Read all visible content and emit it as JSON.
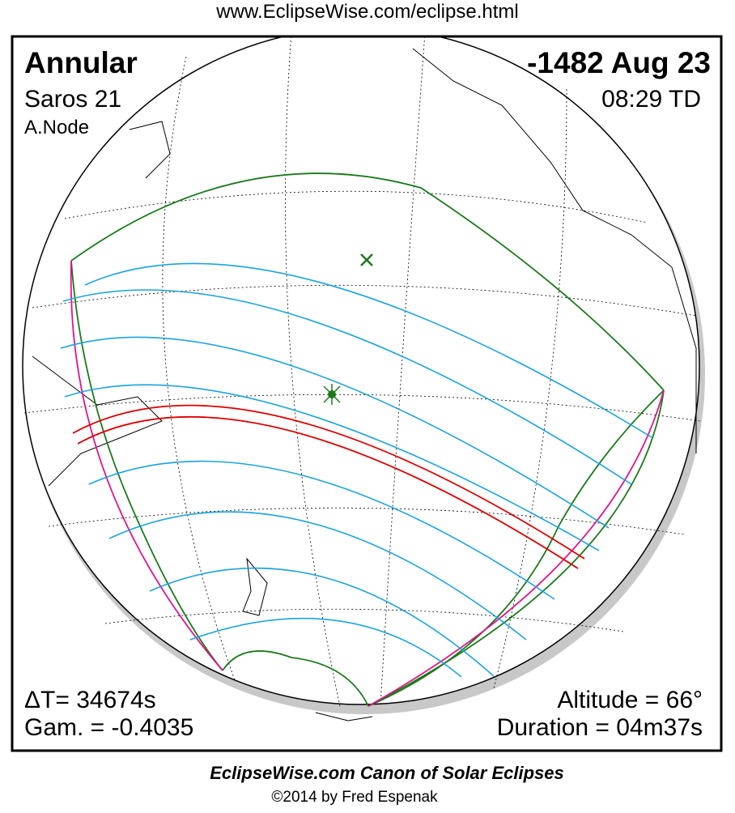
{
  "header": {
    "url": "www.EclipseWise.com/eclipse.html"
  },
  "map": {
    "type": "Annular",
    "date": "-1482 Aug 23",
    "saros": "Saros  21",
    "time": "08:29 TD",
    "node": "A.Node",
    "delta_t": "ΔT=  34674s",
    "gamma": "Gam. = -0.4035",
    "altitude": "Altitude = 66°",
    "duration": "Duration = 04m37s"
  },
  "footer": {
    "title": "EclipseWise.com Canon of Solar Eclipses",
    "credit": "©2014 by Fred Espenak"
  }
}
